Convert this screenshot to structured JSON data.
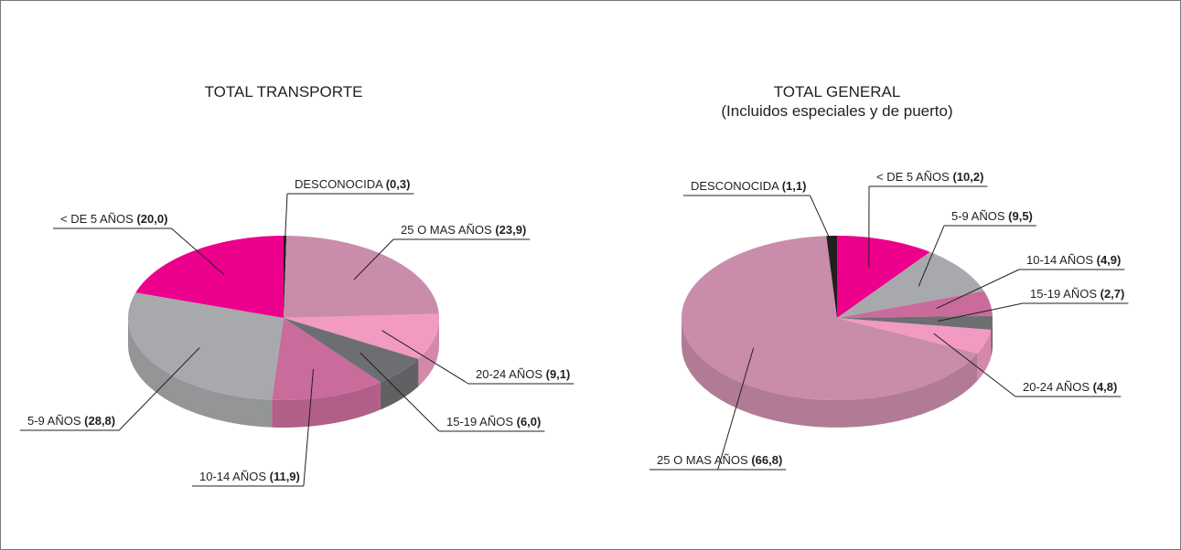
{
  "chart_data": [
    {
      "type": "pie",
      "title": "TOTAL TRANSPORTE",
      "categories": [
        "DESCONOCIDA",
        "25 O MAS AÑOS",
        "20-24 AÑOS",
        "15-19 AÑOS",
        "10-14 AÑOS",
        "5-9 AÑOS",
        "< DE 5 AÑOS"
      ],
      "values": [
        0.3,
        23.9,
        9.1,
        6.0,
        11.9,
        28.8,
        20.0
      ],
      "value_labels": [
        "(0,3)",
        "(23,9)",
        "(9,1)",
        "(6,0)",
        "(11,9)",
        "(28,8)",
        "(20,0)"
      ],
      "colors": [
        "#231f20",
        "#c98caa",
        "#f29ac1",
        "#6d6e71",
        "#c96b9b",
        "#a7a9ac",
        "#ec008c"
      ]
    },
    {
      "type": "pie",
      "title": "TOTAL GENERAL",
      "subtitle": "(Incluidos especiales y de puerto)",
      "categories": [
        "< DE 5 AÑOS",
        "5-9 AÑOS",
        "10-14 AÑOS",
        "15-19 AÑOS",
        "20-24 AÑOS",
        "25 O MAS AÑOS",
        "DESCONOCIDA"
      ],
      "values": [
        10.2,
        9.5,
        4.9,
        2.7,
        4.8,
        66.8,
        1.1
      ],
      "value_labels": [
        "(10,2)",
        "(9,5)",
        "(4,9)",
        "(2,7)",
        "(4,8)",
        "(66,8)",
        "(1,1)"
      ],
      "colors": [
        "#ec008c",
        "#a7a9ac",
        "#c96b9b",
        "#6d6e71",
        "#f29ac1",
        "#c98caa",
        "#231f20"
      ]
    }
  ]
}
